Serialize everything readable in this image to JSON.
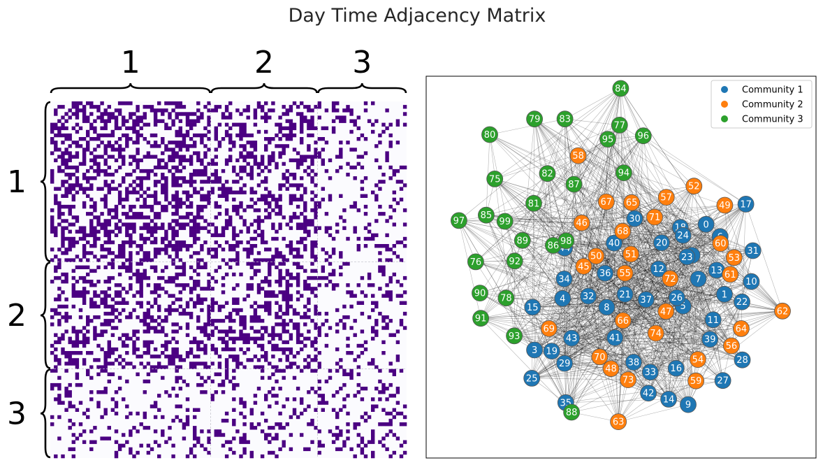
{
  "chart_data": [
    {
      "type": "heatmap",
      "title": "Day Time Adjacency Matrix",
      "matrix_size": 100,
      "density": {
        "within_1": 0.45,
        "between_1_2": 0.38,
        "between_1_3": 0.18,
        "within_2": 0.42,
        "between_2_3": 0.2,
        "within_3": 0.24
      },
      "colors": {
        "on": "#4b0082",
        "off": "#fbfbfe"
      },
      "row_groups": [
        {
          "label": "1",
          "size": 45
        },
        {
          "label": "2",
          "size": 30
        },
        {
          "label": "3",
          "size": 25
        }
      ],
      "col_groups": [
        {
          "label": "1",
          "size": 45
        },
        {
          "label": "2",
          "size": 30
        },
        {
          "label": "3",
          "size": 25
        }
      ]
    },
    {
      "type": "network",
      "legend": [
        {
          "name": "Community 1",
          "color": "#1f77b4"
        },
        {
          "name": "Community 2",
          "color": "#ff7f0e"
        },
        {
          "name": "Community 3",
          "color": "#2ca02c"
        }
      ],
      "legend_position": "top-right",
      "nodes": [
        {
          "id": "0",
          "community": 1,
          "x": 0.718,
          "y": 0.612
        },
        {
          "id": "1",
          "community": 1,
          "x": 0.765,
          "y": 0.429
        },
        {
          "id": "2",
          "community": 1,
          "x": 0.682,
          "y": 0.531
        },
        {
          "id": "3",
          "community": 1,
          "x": 0.278,
          "y": 0.283
        },
        {
          "id": "4",
          "community": 1,
          "x": 0.35,
          "y": 0.418
        },
        {
          "id": "5",
          "community": 1,
          "x": 0.659,
          "y": 0.398
        },
        {
          "id": "6",
          "community": 1,
          "x": 0.754,
          "y": 0.58
        },
        {
          "id": "7",
          "community": 1,
          "x": 0.698,
          "y": 0.469
        },
        {
          "id": "8",
          "community": 1,
          "x": 0.463,
          "y": 0.395
        },
        {
          "id": "9",
          "community": 1,
          "x": 0.672,
          "y": 0.14
        },
        {
          "id": "10",
          "community": 1,
          "x": 0.834,
          "y": 0.462
        },
        {
          "id": "11",
          "community": 1,
          "x": 0.736,
          "y": 0.362
        },
        {
          "id": "12",
          "community": 1,
          "x": 0.596,
          "y": 0.495
        },
        {
          "id": "13",
          "community": 1,
          "x": 0.745,
          "y": 0.492
        },
        {
          "id": "14",
          "community": 1,
          "x": 0.622,
          "y": 0.154
        },
        {
          "id": "15",
          "community": 1,
          "x": 0.273,
          "y": 0.395
        },
        {
          "id": "16",
          "community": 1,
          "x": 0.641,
          "y": 0.235
        },
        {
          "id": "17",
          "community": 1,
          "x": 0.82,
          "y": 0.665
        },
        {
          "id": "18",
          "community": 1,
          "x": 0.652,
          "y": 0.604
        },
        {
          "id": "19",
          "community": 1,
          "x": 0.322,
          "y": 0.28
        },
        {
          "id": "20",
          "community": 1,
          "x": 0.604,
          "y": 0.564
        },
        {
          "id": "21",
          "community": 1,
          "x": 0.51,
          "y": 0.429
        },
        {
          "id": "22",
          "community": 1,
          "x": 0.81,
          "y": 0.409
        },
        {
          "id": "23",
          "community": 1,
          "x": 0.669,
          "y": 0.527
        },
        {
          "id": "24",
          "community": 1,
          "x": 0.659,
          "y": 0.583
        },
        {
          "id": "25",
          "community": 1,
          "x": 0.271,
          "y": 0.209
        },
        {
          "id": "26",
          "community": 1,
          "x": 0.643,
          "y": 0.42
        },
        {
          "id": "27",
          "community": 1,
          "x": 0.761,
          "y": 0.203
        },
        {
          "id": "28",
          "community": 1,
          "x": 0.811,
          "y": 0.257
        },
        {
          "id": "29",
          "community": 1,
          "x": 0.355,
          "y": 0.248
        },
        {
          "id": "30",
          "community": 1,
          "x": 0.535,
          "y": 0.627
        },
        {
          "id": "31",
          "community": 1,
          "x": 0.838,
          "y": 0.543
        },
        {
          "id": "32",
          "community": 1,
          "x": 0.416,
          "y": 0.424
        },
        {
          "id": "33",
          "community": 1,
          "x": 0.575,
          "y": 0.225
        },
        {
          "id": "34",
          "community": 1,
          "x": 0.354,
          "y": 0.469
        },
        {
          "id": "35",
          "community": 1,
          "x": 0.358,
          "y": 0.145
        },
        {
          "id": "36",
          "community": 1,
          "x": 0.459,
          "y": 0.484
        },
        {
          "id": "37",
          "community": 1,
          "x": 0.564,
          "y": 0.415
        },
        {
          "id": "38",
          "community": 1,
          "x": 0.532,
          "y": 0.251
        },
        {
          "id": "39",
          "community": 1,
          "x": 0.728,
          "y": 0.311
        },
        {
          "id": "40",
          "community": 1,
          "x": 0.482,
          "y": 0.563
        },
        {
          "id": "41",
          "community": 1,
          "x": 0.484,
          "y": 0.315
        },
        {
          "id": "42",
          "community": 1,
          "x": 0.57,
          "y": 0.17
        },
        {
          "id": "43",
          "community": 1,
          "x": 0.373,
          "y": 0.314
        },
        {
          "id": "44",
          "community": 1,
          "x": 0.355,
          "y": 0.55
        },
        {
          "id": "45",
          "community": 2,
          "x": 0.404,
          "y": 0.502
        },
        {
          "id": "46",
          "community": 2,
          "x": 0.399,
          "y": 0.616
        },
        {
          "id": "47",
          "community": 2,
          "x": 0.615,
          "y": 0.384
        },
        {
          "id": "48",
          "community": 2,
          "x": 0.474,
          "y": 0.234
        },
        {
          "id": "49",
          "community": 2,
          "x": 0.766,
          "y": 0.662
        },
        {
          "id": "50",
          "community": 2,
          "x": 0.436,
          "y": 0.529
        },
        {
          "id": "51",
          "community": 2,
          "x": 0.525,
          "y": 0.534
        },
        {
          "id": "52",
          "community": 2,
          "x": 0.687,
          "y": 0.712
        },
        {
          "id": "53",
          "community": 2,
          "x": 0.79,
          "y": 0.525
        },
        {
          "id": "54",
          "community": 2,
          "x": 0.697,
          "y": 0.258
        },
        {
          "id": "55",
          "community": 2,
          "x": 0.51,
          "y": 0.484
        },
        {
          "id": "56",
          "community": 2,
          "x": 0.783,
          "y": 0.294
        },
        {
          "id": "57",
          "community": 2,
          "x": 0.616,
          "y": 0.683
        },
        {
          "id": "58",
          "community": 2,
          "x": 0.39,
          "y": 0.792
        },
        {
          "id": "59",
          "community": 2,
          "x": 0.692,
          "y": 0.202
        },
        {
          "id": "60",
          "community": 2,
          "x": 0.755,
          "y": 0.562
        },
        {
          "id": "61",
          "community": 2,
          "x": 0.78,
          "y": 0.481
        },
        {
          "id": "62",
          "community": 2,
          "x": 0.914,
          "y": 0.385
        },
        {
          "id": "63",
          "community": 2,
          "x": 0.493,
          "y": 0.095
        },
        {
          "id": "64",
          "community": 2,
          "x": 0.808,
          "y": 0.339
        },
        {
          "id": "65",
          "community": 2,
          "x": 0.527,
          "y": 0.669
        },
        {
          "id": "66",
          "community": 2,
          "x": 0.505,
          "y": 0.36
        },
        {
          "id": "67",
          "community": 2,
          "x": 0.462,
          "y": 0.671
        },
        {
          "id": "68",
          "community": 2,
          "x": 0.504,
          "y": 0.594
        },
        {
          "id": "69",
          "community": 2,
          "x": 0.315,
          "y": 0.339
        },
        {
          "id": "70",
          "community": 2,
          "x": 0.445,
          "y": 0.265
        },
        {
          "id": "71",
          "community": 2,
          "x": 0.586,
          "y": 0.631
        },
        {
          "id": "72",
          "community": 2,
          "x": 0.626,
          "y": 0.47
        },
        {
          "id": "73",
          "community": 2,
          "x": 0.518,
          "y": 0.205
        },
        {
          "id": "74",
          "community": 2,
          "x": 0.589,
          "y": 0.327
        },
        {
          "id": "75",
          "community": 3,
          "x": 0.176,
          "y": 0.731
        },
        {
          "id": "76",
          "community": 3,
          "x": 0.127,
          "y": 0.514
        },
        {
          "id": "77",
          "community": 3,
          "x": 0.496,
          "y": 0.872
        },
        {
          "id": "78",
          "community": 3,
          "x": 0.205,
          "y": 0.419
        },
        {
          "id": "79",
          "community": 3,
          "x": 0.278,
          "y": 0.888
        },
        {
          "id": "80",
          "community": 3,
          "x": 0.163,
          "y": 0.847
        },
        {
          "id": "81",
          "community": 3,
          "x": 0.276,
          "y": 0.667
        },
        {
          "id": "82",
          "community": 3,
          "x": 0.311,
          "y": 0.745
        },
        {
          "id": "83",
          "community": 3,
          "x": 0.356,
          "y": 0.888
        },
        {
          "id": "84",
          "community": 3,
          "x": 0.499,
          "y": 0.968
        },
        {
          "id": "85",
          "community": 3,
          "x": 0.154,
          "y": 0.636
        },
        {
          "id": "86",
          "community": 3,
          "x": 0.326,
          "y": 0.557
        },
        {
          "id": "87",
          "community": 3,
          "x": 0.379,
          "y": 0.717
        },
        {
          "id": "88",
          "community": 3,
          "x": 0.373,
          "y": 0.12
        },
        {
          "id": "89",
          "community": 3,
          "x": 0.247,
          "y": 0.57
        },
        {
          "id": "90",
          "community": 3,
          "x": 0.138,
          "y": 0.432
        },
        {
          "id": "91",
          "community": 3,
          "x": 0.14,
          "y": 0.366
        },
        {
          "id": "92",
          "community": 3,
          "x": 0.227,
          "y": 0.516
        },
        {
          "id": "93",
          "community": 3,
          "x": 0.226,
          "y": 0.32
        },
        {
          "id": "94",
          "community": 3,
          "x": 0.507,
          "y": 0.747
        },
        {
          "id": "95",
          "community": 3,
          "x": 0.466,
          "y": 0.835
        },
        {
          "id": "96",
          "community": 3,
          "x": 0.557,
          "y": 0.844
        },
        {
          "id": "97",
          "community": 3,
          "x": 0.084,
          "y": 0.622
        },
        {
          "id": "98",
          "community": 3,
          "x": 0.359,
          "y": 0.569
        },
        {
          "id": "99",
          "community": 3,
          "x": 0.202,
          "y": 0.62
        }
      ],
      "edge_probability": {
        "same_community": 0.33,
        "different_community": 0.14
      },
      "edge_color": "#000000"
    }
  ]
}
